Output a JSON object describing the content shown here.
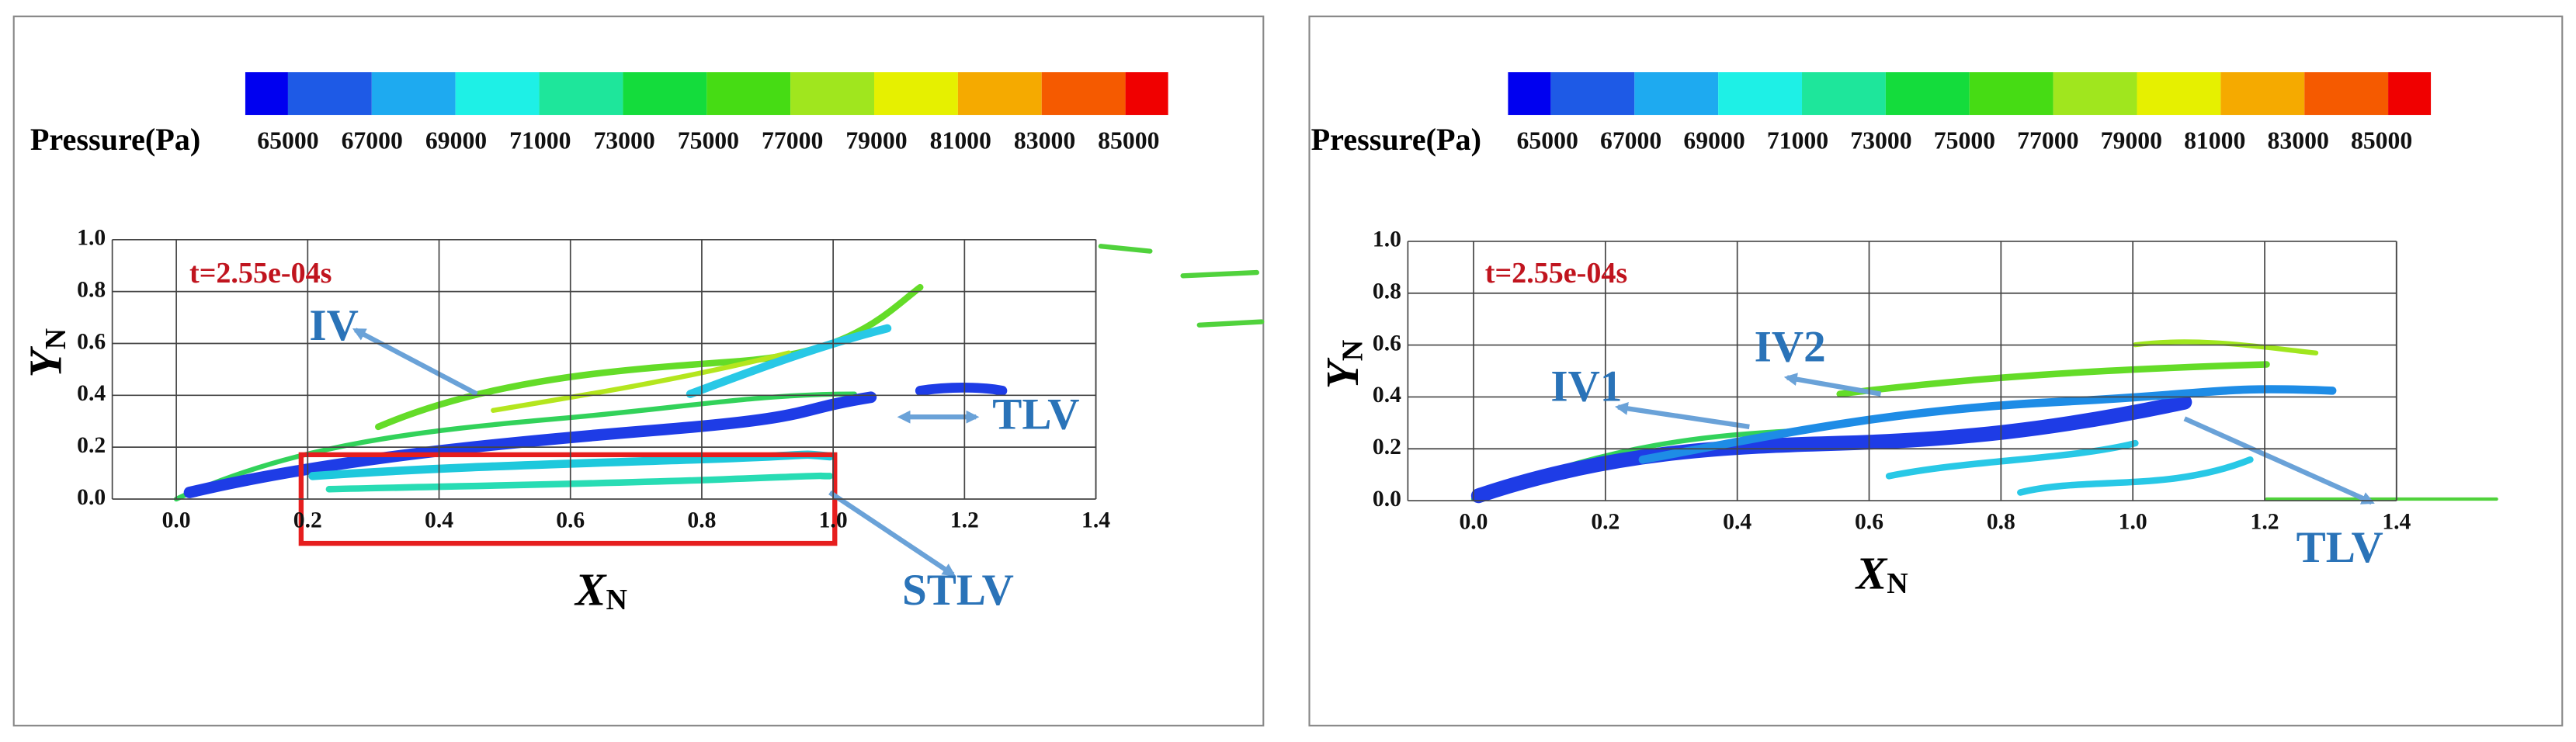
{
  "panels": [
    {
      "colorbar_label": "Pressure(Pa)",
      "colorbar_ticks": [
        65000,
        67000,
        69000,
        71000,
        73000,
        75000,
        77000,
        79000,
        81000,
        83000,
        85000
      ],
      "x_ticks": [
        "0.0",
        "0.2",
        "0.4",
        "0.6",
        "0.8",
        "1.0",
        "1.2",
        "1.4"
      ],
      "y_ticks": [
        "0.0",
        "0.2",
        "0.4",
        "0.6",
        "0.8",
        "1.0"
      ],
      "x_label": "X",
      "x_label_sub": "N",
      "y_label": "Y",
      "y_label_sub": "N",
      "time": "t=2.55e-04s",
      "annotations": [
        "IV",
        "TLV",
        "STLV"
      ]
    },
    {
      "colorbar_label": "Pressure(Pa)",
      "colorbar_ticks": [
        65000,
        67000,
        69000,
        71000,
        73000,
        75000,
        77000,
        79000,
        81000,
        83000,
        85000
      ],
      "x_ticks": [
        "0.0",
        "0.2",
        "0.4",
        "0.6",
        "0.8",
        "1.0",
        "1.2",
        "1.4"
      ],
      "y_ticks": [
        "0.0",
        "0.2",
        "0.4",
        "0.6",
        "0.8",
        "1.0"
      ],
      "x_label": "X",
      "x_label_sub": "N",
      "y_label": "Y",
      "y_label_sub": "N",
      "time": "t=2.55e-04s",
      "annotations": [
        "IV1",
        "IV2",
        "TLV"
      ]
    }
  ]
}
